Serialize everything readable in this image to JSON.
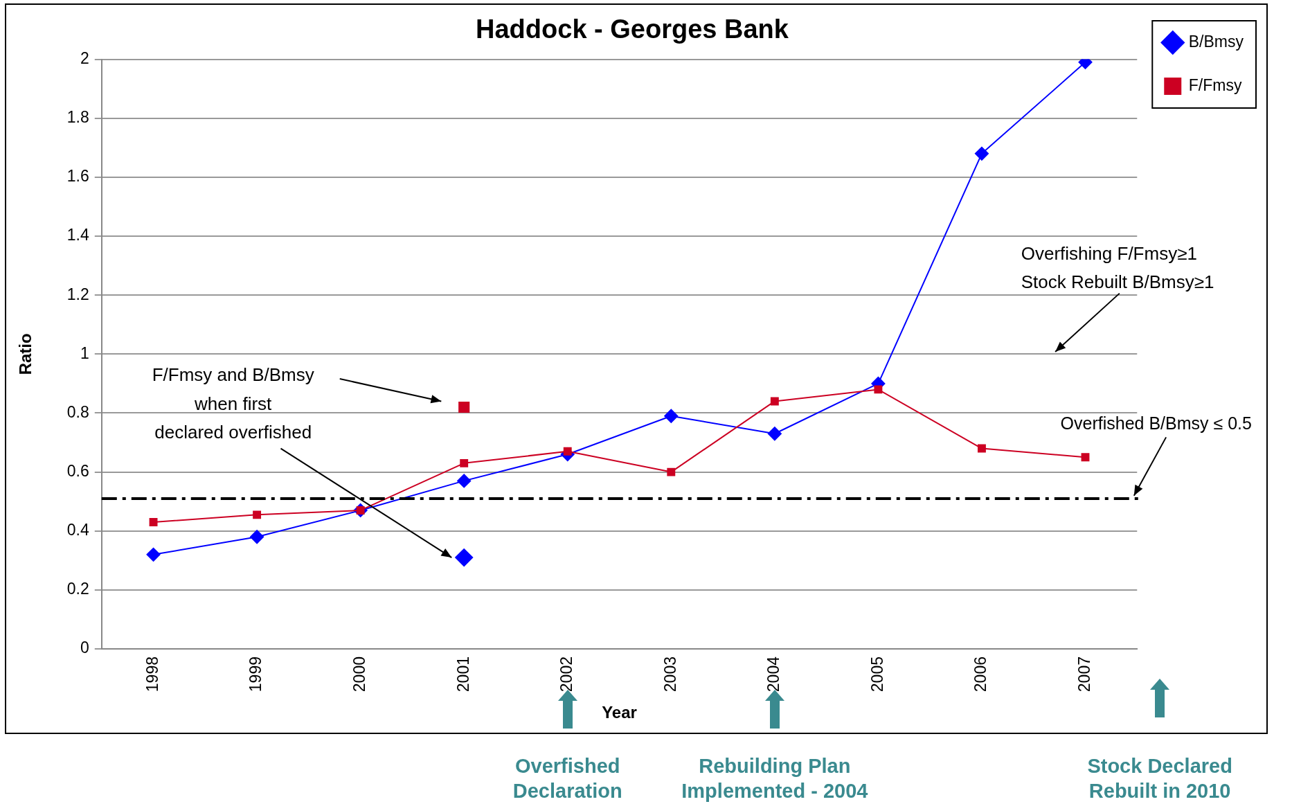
{
  "chart_data": {
    "type": "line",
    "title": "Haddock - Georges Bank",
    "xlabel": "Year",
    "ylabel": "Ratio",
    "categories": [
      "1998",
      "1999",
      "2000",
      "2001",
      "2002",
      "2003",
      "2004",
      "2005",
      "2006",
      "2007"
    ],
    "series": [
      {
        "name": "B/Bmsy",
        "color": "#0000ff",
        "marker": "diamond",
        "values": [
          0.32,
          0.38,
          0.47,
          0.57,
          0.66,
          0.79,
          0.73,
          0.9,
          1.68,
          1.99
        ]
      },
      {
        "name": "F/Fmsy",
        "color": "#cc0022",
        "marker": "square",
        "values": [
          0.43,
          0.455,
          0.47,
          0.63,
          0.67,
          0.6,
          0.84,
          0.88,
          0.68,
          0.65
        ]
      },
      {
        "type": "scatter",
        "color": "#cc0022",
        "marker": "square",
        "values": [
          null,
          null,
          null,
          0.82,
          null,
          null,
          null,
          null,
          null,
          null
        ]
      },
      {
        "type": "scatter",
        "color": "#0000ff",
        "marker": "diamond",
        "values": [
          null,
          null,
          null,
          0.31,
          null,
          null,
          null,
          null,
          null,
          null
        ]
      }
    ],
    "ylim": [
      0,
      2
    ],
    "yticks": [
      0,
      0.2,
      0.4,
      0.6,
      0.8,
      1,
      1.2,
      1.4,
      1.6,
      1.8,
      2
    ],
    "grid": "y",
    "legend": "top right",
    "ref_lines": [
      {
        "axis": "y",
        "value": 0.51,
        "label": "Overfished B/Bmsy ≤ 0.5",
        "color": "#000000",
        "line_style": "dashdot"
      }
    ],
    "annotations": [
      "F/Fmsy and B/Bmsy when first declared overfished",
      "Overfishing F/Fmsy≥1 Stock Rebuilt B/Bmsy≥1",
      "Overfished Declaration",
      "Rebuilding Plan Implemented - 2004",
      "Stock Declared Rebuilt in 2010"
    ]
  }
}
